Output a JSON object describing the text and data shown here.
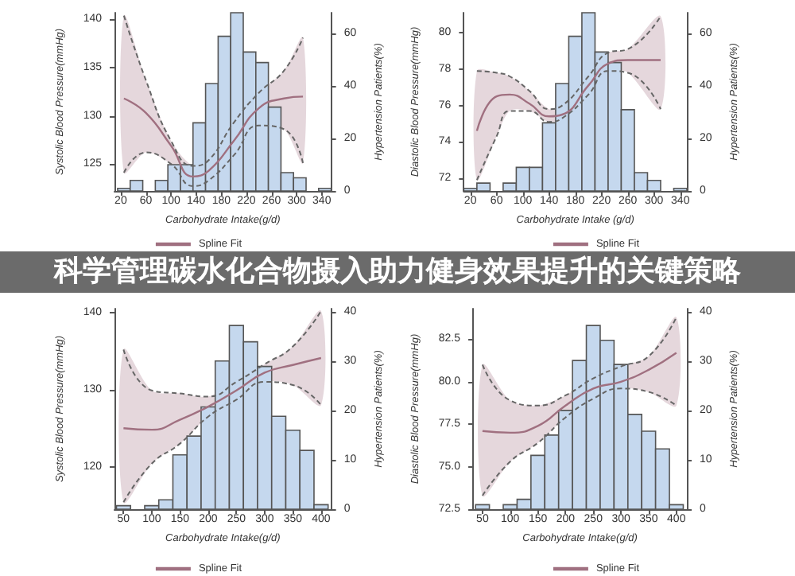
{
  "chart_data": [
    {
      "type": "histogram",
      "title": "科学管理碳水化合物摄入助力健身效果提升的关键策略",
      "xlabel": "Carbohydrate Intake(g/d)",
      "ylabel": "Systolic Blood Pressure(mmHg)",
      "y2label": "Hypertension Patients(%)",
      "legend": "bottom",
      "xlim": [
        10,
        355
      ],
      "xticks": [
        20,
        60,
        100,
        140,
        180,
        220,
        260,
        300,
        340
      ],
      "ylim": [
        122.2,
        140.7
      ],
      "yticks": [
        125,
        130,
        135,
        140
      ],
      "y2lim": [
        0,
        68
      ],
      "y2ticks": [
        0,
        20,
        40,
        60
      ],
      "series": [
        {
          "type": "histogram",
          "axis": "y2",
          "color": "#c5d8ee",
          "bins": [
            15,
            35,
            55,
            75,
            95,
            115,
            135,
            155,
            175,
            195,
            215,
            235,
            255,
            275,
            295,
            315,
            335,
            355
          ],
          "values": [
            1,
            4,
            0,
            4,
            10,
            10,
            26,
            41,
            59,
            68,
            53,
            49,
            32,
            7,
            5,
            0,
            1
          ]
        },
        {
          "type": "line",
          "name": "Spline Fit",
          "color": "#a07080",
          "x": [
            25,
            60,
            100,
            135,
            160,
            200,
            240,
            280,
            310
          ],
          "values": [
            131.8,
            130.3,
            126.9,
            123.7,
            124.3,
            127.4,
            130.8,
            131.8,
            132.0
          ],
          "lower": [
            124.1,
            126.2,
            125.0,
            122.7,
            123.3,
            125.9,
            129.0,
            128.6,
            125.1
          ],
          "upper": [
            140.4,
            133.7,
            127.4,
            124.8,
            125.4,
            129.3,
            132.4,
            134.7,
            138.1
          ]
        },
        {
          "type": "line",
          "line_style": "dashed",
          "color": "#666666",
          "x": [
            25,
            60,
            100,
            135,
            160,
            200,
            240,
            280,
            310
          ],
          "values": [
            124.1,
            126.2,
            125.0,
            122.7,
            123.3,
            125.9,
            129.0,
            128.6,
            125.1
          ]
        },
        {
          "type": "line",
          "line_style": "dashed",
          "color": "#666666",
          "x": [
            25,
            60,
            100,
            135,
            160,
            200,
            240,
            280,
            310
          ],
          "values": [
            140.4,
            133.7,
            127.4,
            124.8,
            125.4,
            129.3,
            132.4,
            134.7,
            138.1
          ]
        }
      ]
    },
    {
      "type": "histogram",
      "xlabel": "Carbohydrate Intake (g/d)",
      "ylabel": "Diastolic Blood Pressure(mmHg)",
      "y2label": "Hypertension Patients(%)",
      "legend": "bottom",
      "xlim": [
        10,
        350
      ],
      "xticks": [
        20,
        60,
        100,
        140,
        180,
        220,
        260,
        300,
        340
      ],
      "ylim": [
        71.3,
        81.1
      ],
      "yticks": [
        72,
        74,
        76,
        78,
        80
      ],
      "y2lim": [
        0,
        68
      ],
      "y2ticks": [
        0,
        20,
        40,
        60
      ],
      "series": [
        {
          "type": "histogram",
          "axis": "y2",
          "color": "#c5d8ee",
          "bins": [
            10,
            30,
            50,
            70,
            90,
            110,
            130,
            150,
            170,
            190,
            210,
            230,
            250,
            270,
            290,
            310,
            330,
            350
          ],
          "values": [
            1,
            3,
            0,
            3,
            9,
            9,
            26,
            41,
            59,
            68,
            53,
            49,
            31,
            7,
            4,
            0,
            1
          ]
        },
        {
          "type": "line",
          "name": "Spline Fit",
          "color": "#a07080",
          "x": [
            30,
            60,
            80,
            110,
            140,
            160,
            200,
            230,
            260,
            310
          ],
          "values": [
            74.6,
            76.5,
            76.6,
            76.1,
            75.4,
            75.5,
            77.1,
            78.3,
            78.5,
            78.5
          ],
          "lower": [
            71.9,
            74.3,
            75.7,
            75.7,
            75.1,
            75.3,
            76.6,
            77.9,
            77.8,
            75.8
          ],
          "upper": [
            77.9,
            77.8,
            77.6,
            76.8,
            75.8,
            76.0,
            77.6,
            78.9,
            79.1,
            80.9
          ]
        },
        {
          "type": "line",
          "line_style": "dashed",
          "color": "#666666",
          "x": [
            30,
            60,
            80,
            110,
            140,
            160,
            200,
            230,
            260,
            310
          ],
          "values": [
            71.9,
            74.3,
            75.7,
            75.7,
            75.1,
            75.3,
            76.6,
            77.9,
            77.8,
            75.8
          ]
        },
        {
          "type": "line",
          "line_style": "dashed",
          "color": "#666666",
          "x": [
            30,
            60,
            80,
            110,
            140,
            160,
            200,
            230,
            260,
            310
          ],
          "values": [
            77.9,
            77.8,
            77.6,
            76.8,
            75.8,
            76.0,
            77.6,
            78.9,
            79.1,
            80.9
          ]
        }
      ]
    },
    {
      "type": "histogram",
      "xlabel": "Carbohydrate Intake(g/d)",
      "ylabel": "Systolic Blood Pressure(mmHg)",
      "y2label": "Hypertension Patients(%)",
      "legend": "bottom",
      "xlim": [
        34,
        418
      ],
      "xticks": [
        50,
        100,
        150,
        200,
        250,
        300,
        350,
        400
      ],
      "ylim": [
        114.5,
        140.5
      ],
      "yticks": [
        120,
        130,
        140
      ],
      "y2lim": [
        0,
        40.6
      ],
      "y2ticks": [
        0,
        10,
        20,
        30,
        40
      ],
      "series": [
        {
          "type": "histogram",
          "axis": "y2",
          "color": "#c5d8ee",
          "bins": [
            37.5,
            62.5,
            87.5,
            112.5,
            137.5,
            162.5,
            187.5,
            212.5,
            237.5,
            262.5,
            287.5,
            312.5,
            337.5,
            362.5,
            387.5,
            412.5
          ],
          "values": [
            0.7,
            0,
            0.7,
            1.9,
            11,
            14.8,
            20.7,
            30,
            37.2,
            33.9,
            28.9,
            18.8,
            16,
            11.9,
            0.9
          ]
        },
        {
          "type": "line",
          "name": "Spline Fit",
          "color": "#a07080",
          "x": [
            50,
            100,
            150,
            200,
            250,
            300,
            350,
            400
          ],
          "values": [
            125.0,
            124.8,
            126.1,
            127.8,
            129.9,
            132.2,
            133.2,
            134.1
          ],
          "lower": [
            115.4,
            120.4,
            123.0,
            126.5,
            128.7,
            131.0,
            130.6,
            128.0
          ],
          "upper": [
            135.2,
            129.9,
            129.5,
            129.1,
            131.0,
            133.3,
            135.6,
            140.2
          ]
        },
        {
          "type": "line",
          "line_style": "dashed",
          "color": "#666666",
          "x": [
            50,
            100,
            150,
            200,
            250,
            300,
            350,
            400
          ],
          "values": [
            115.4,
            120.4,
            123.0,
            126.5,
            128.7,
            131.0,
            130.6,
            128.0
          ]
        },
        {
          "type": "line",
          "line_style": "dashed",
          "color": "#666666",
          "x": [
            50,
            100,
            150,
            200,
            250,
            300,
            350,
            400
          ],
          "values": [
            135.2,
            129.9,
            129.5,
            129.1,
            131.0,
            133.3,
            135.6,
            140.2
          ]
        }
      ]
    },
    {
      "type": "histogram",
      "xlabel": "Carbohydrate Intake(g/d)",
      "ylabel": "Diastolic Blood Pressure(mmHg)",
      "y2label": "Hypertension Patients(%)",
      "legend": "bottom",
      "xlim": [
        33,
        419
      ],
      "xticks": [
        50,
        100,
        150,
        200,
        250,
        300,
        350,
        400
      ],
      "ylim": [
        72.5,
        84.3
      ],
      "yticks": [
        {
          "value": 72.5,
          "label": "72.5"
        },
        {
          "value": 75,
          "label": "75.0"
        },
        {
          "value": 77.5,
          "label": "77.5"
        },
        {
          "value": 80,
          "label": "80.0"
        },
        {
          "value": 82.5,
          "label": "82.5"
        }
      ],
      "y2lim": [
        0,
        40.6
      ],
      "y2ticks": [
        0,
        10,
        20,
        30,
        40
      ],
      "series": [
        {
          "type": "histogram",
          "axis": "y2",
          "color": "#c5d8ee",
          "bins": [
            37.5,
            62.5,
            87.5,
            112.5,
            137.5,
            162.5,
            187.5,
            212.5,
            237.5,
            262.5,
            287.5,
            312.5,
            337.5,
            362.5,
            387.5,
            412.5
          ],
          "values": [
            0.9,
            0,
            0.9,
            2,
            10.9,
            15,
            20,
            30.1,
            37.2,
            34.2,
            29.3,
            19.2,
            15.8,
            12.2,
            0.9
          ]
        },
        {
          "type": "line",
          "name": "Spline Fit",
          "color": "#a07080",
          "x": [
            50,
            100,
            150,
            200,
            250,
            300,
            350,
            400
          ],
          "values": [
            77.1,
            77.0,
            77.4,
            78.6,
            79.6,
            80.0,
            80.7,
            81.7
          ],
          "lower": [
            73.3,
            75.3,
            76.4,
            77.9,
            79.0,
            79.6,
            79.4,
            78.6
          ],
          "upper": [
            81.0,
            78.9,
            78.6,
            79.2,
            80.2,
            80.9,
            81.5,
            83.8
          ]
        },
        {
          "type": "line",
          "line_style": "dashed",
          "color": "#666666",
          "x": [
            50,
            100,
            150,
            200,
            250,
            300,
            350,
            400
          ],
          "values": [
            73.3,
            75.3,
            76.4,
            77.9,
            79.0,
            79.6,
            79.4,
            78.6
          ]
        },
        {
          "type": "line",
          "line_style": "dashed",
          "color": "#666666",
          "x": [
            50,
            100,
            150,
            200,
            250,
            300,
            350,
            400
          ],
          "values": [
            81.0,
            78.9,
            78.6,
            79.2,
            80.2,
            80.9,
            81.5,
            83.8
          ]
        }
      ]
    }
  ]
}
